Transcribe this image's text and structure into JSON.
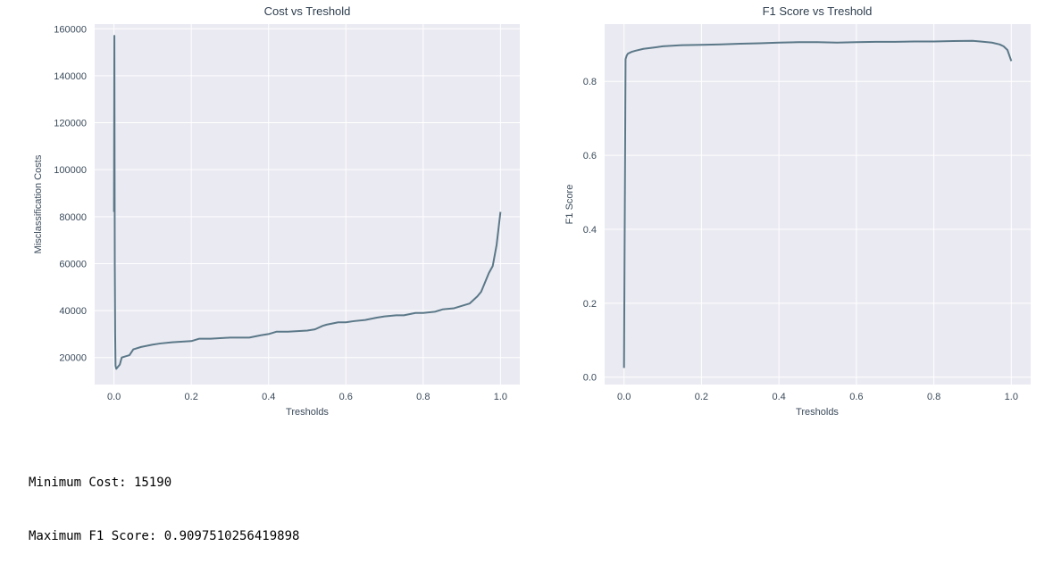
{
  "colors": {
    "plot_bg": "#eaeaf2",
    "grid": "#ffffff",
    "line": "#5b7888"
  },
  "chart_data": [
    {
      "type": "line",
      "title": "Cost vs Treshold",
      "xlabel": "Tresholds",
      "ylabel": "Misclassification Costs",
      "xlim": [
        -0.05,
        1.05
      ],
      "ylim": [
        8500,
        162000
      ],
      "xticks": [
        0.0,
        0.2,
        0.4,
        0.6,
        0.8,
        1.0
      ],
      "xtick_labels": [
        "0.0",
        "0.2",
        "0.4",
        "0.6",
        "0.8",
        "1.0"
      ],
      "yticks": [
        20000,
        40000,
        60000,
        80000,
        100000,
        120000,
        140000,
        160000
      ],
      "ytick_labels": [
        "20000",
        "40000",
        "60000",
        "80000",
        "100000",
        "120000",
        "140000",
        "160000"
      ],
      "grid": true,
      "series": [
        {
          "x": [
            0.0,
            0.001,
            0.002,
            0.003,
            0.004,
            0.006,
            0.01,
            0.015,
            0.02,
            0.04,
            0.05,
            0.07,
            0.1,
            0.12,
            0.15,
            0.2,
            0.22,
            0.25,
            0.3,
            0.35,
            0.38,
            0.4,
            0.42,
            0.45,
            0.5,
            0.52,
            0.54,
            0.55,
            0.58,
            0.6,
            0.62,
            0.65,
            0.68,
            0.7,
            0.73,
            0.75,
            0.78,
            0.8,
            0.83,
            0.85,
            0.88,
            0.9,
            0.92,
            0.94,
            0.95,
            0.96,
            0.97,
            0.98,
            0.99,
            0.995,
            1.0
          ],
          "y": [
            82000,
            157000,
            60000,
            30000,
            16500,
            15190,
            16000,
            17000,
            20000,
            21000,
            23500,
            24500,
            25500,
            26000,
            26500,
            27000,
            28000,
            28000,
            28500,
            28500,
            29500,
            30000,
            31000,
            31000,
            31500,
            32000,
            33500,
            34000,
            35000,
            35000,
            35500,
            36000,
            37000,
            37500,
            38000,
            38000,
            39000,
            39000,
            39500,
            40500,
            41000,
            42000,
            43000,
            46000,
            48000,
            52000,
            56000,
            59000,
            68000,
            75000,
            82000
          ]
        }
      ]
    },
    {
      "type": "line",
      "title": "F1 Score vs Treshold",
      "xlabel": "Tresholds",
      "ylabel": "F1 Score",
      "xlim": [
        -0.05,
        1.05
      ],
      "ylim": [
        -0.02,
        0.955
      ],
      "xticks": [
        0.0,
        0.2,
        0.4,
        0.6,
        0.8,
        1.0
      ],
      "xtick_labels": [
        "0.0",
        "0.2",
        "0.4",
        "0.6",
        "0.8",
        "1.0"
      ],
      "yticks": [
        0.0,
        0.2,
        0.4,
        0.6,
        0.8
      ],
      "ytick_labels": [
        "0.0",
        "0.2",
        "0.4",
        "0.6",
        "0.8"
      ],
      "grid": true,
      "series": [
        {
          "x": [
            0.0,
            0.002,
            0.004,
            0.007,
            0.01,
            0.02,
            0.03,
            0.05,
            0.08,
            0.1,
            0.15,
            0.2,
            0.25,
            0.3,
            0.35,
            0.4,
            0.45,
            0.5,
            0.55,
            0.6,
            0.65,
            0.7,
            0.75,
            0.8,
            0.85,
            0.9,
            0.92,
            0.95,
            0.97,
            0.98,
            0.99,
            1.0
          ],
          "y": [
            0.025,
            0.45,
            0.86,
            0.87,
            0.875,
            0.88,
            0.883,
            0.888,
            0.892,
            0.895,
            0.898,
            0.899,
            0.9,
            0.902,
            0.903,
            0.905,
            0.906,
            0.906,
            0.905,
            0.906,
            0.907,
            0.907,
            0.908,
            0.908,
            0.909,
            0.9098,
            0.908,
            0.905,
            0.9,
            0.895,
            0.885,
            0.855
          ]
        }
      ]
    }
  ],
  "output": {
    "line1": "Minimum Cost: 15190",
    "line2": "Maximum F1 Score: 0.9097510256419898"
  }
}
